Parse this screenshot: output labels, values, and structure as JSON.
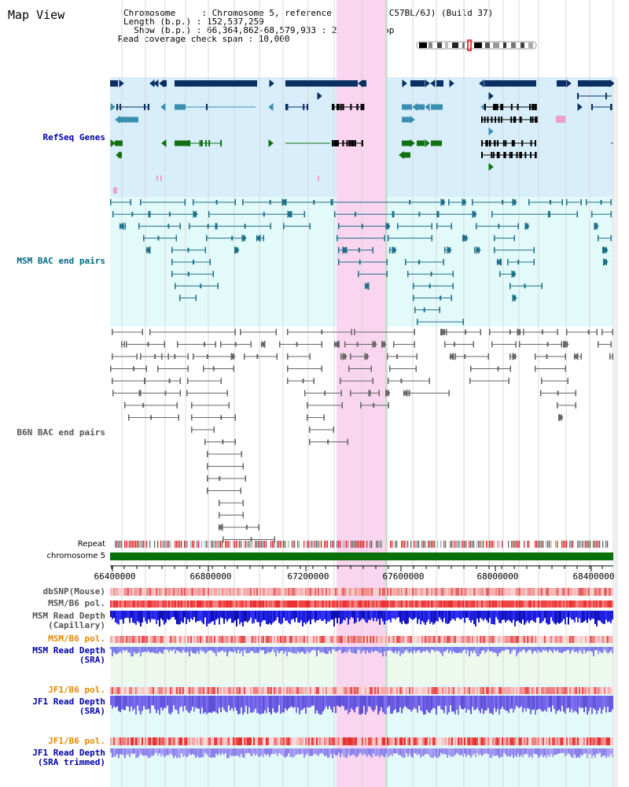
{
  "header": {
    "title": "Map View",
    "line1": "Chromosome     : Chromosome 5, reference assembly (C57BL/6J) (Build 37)",
    "line2": "Length (b.p.) : 152,537,259",
    "line3": "  Show (b.p.) : 66,364,862-68,579,933 : 2,215,072 bp",
    "line4": "Read coverage check span : 10,000"
  },
  "tracks": {
    "refseq": {
      "label": "RefSeq Genes",
      "color": "#0000aa"
    },
    "msm_bac": {
      "label": "MSM BAC end pairs",
      "color": "#006a80"
    },
    "b6n_bac": {
      "label": "B6N BAC end pairs",
      "color": "#555555"
    },
    "repeat": {
      "label": "Repeat"
    },
    "chromosome": {
      "label": "chromosome 5"
    },
    "dbsnp": {
      "label": "dbSNP(Mouse)",
      "color": "#555555"
    },
    "msm_b6_pol_1": {
      "label": "MSM/B6 pol.",
      "color": "#555555"
    },
    "msm_depth_cap": {
      "label": "MSM Read Depth\n(Capillary)",
      "color": "#555555"
    },
    "msm_b6_pol_2": {
      "label": "MSM/B6 pol.",
      "color": "#e08a00"
    },
    "msm_depth_sra": {
      "label": "MSM Read Depth\n(SRA)",
      "color": "#0000aa"
    },
    "jf1_b6_pol_1": {
      "label": "JF1/B6 pol.",
      "color": "#e08a00"
    },
    "jf1_depth_sra": {
      "label": "JF1 Read Depth\n(SRA)",
      "color": "#0000aa"
    },
    "jf1_b6_pol_2": {
      "label": "JF1/B6 pol.",
      "color": "#e08a00"
    },
    "jf1_depth_trim": {
      "label": "JF1 Read Depth\n(SRA trimmed)",
      "color": "#0000aa"
    }
  },
  "axis": {
    "ticks": [
      "66400000",
      "66800000",
      "67200000",
      "67600000",
      "68000000",
      "68400000"
    ]
  },
  "colors": {
    "highlight": "#f9d5ef",
    "refseq_bg": "#d8eefa",
    "msm_bg": "#e3fafa",
    "gene_navy": "#0b2e63",
    "gene_blue": "#3a8fb0",
    "gene_green": "#127012",
    "chromosome_green": "#0a700a"
  }
}
